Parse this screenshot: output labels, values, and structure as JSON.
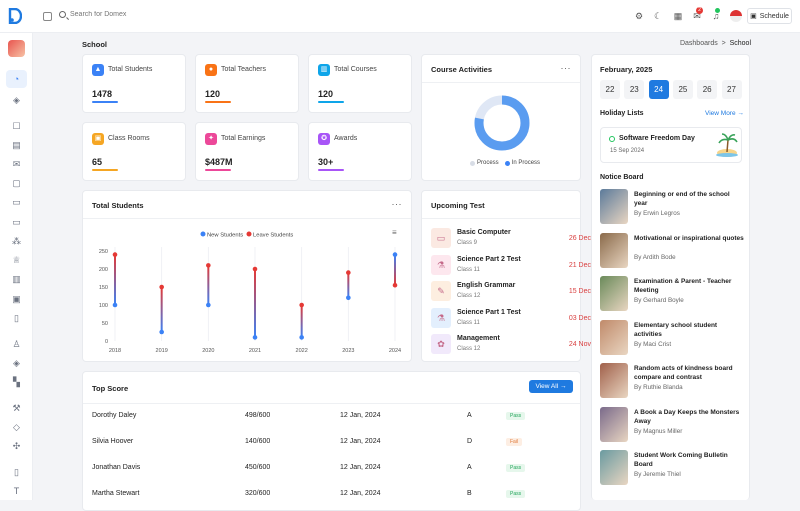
{
  "topbar": {
    "search_placeholder": "Search for Domex",
    "notification_count": "2",
    "schedule_label": "Schedule"
  },
  "page": {
    "title": "School",
    "breadcrumb": {
      "parent": "Dashboards",
      "separator": ">",
      "current": "School"
    }
  },
  "stats": [
    {
      "label": "Total Students",
      "value": "1478",
      "color": "#3b82f6",
      "icon": "graduation-cap-icon"
    },
    {
      "label": "Total Teachers",
      "value": "120",
      "color": "#f97316",
      "icon": "teacher-icon"
    },
    {
      "label": "Total Courses",
      "value": "120",
      "color": "#0ea5e9",
      "icon": "book-icon"
    },
    {
      "label": "Class Rooms",
      "value": "65",
      "color": "#f5a623",
      "icon": "classroom-icon"
    },
    {
      "label": "Total Earnings",
      "value": "$487M",
      "color": "#ec4899",
      "icon": "earnings-icon"
    },
    {
      "label": "Awards",
      "value": "30+",
      "color": "#a855f7",
      "icon": "award-icon"
    }
  ],
  "course_activities": {
    "title": "Course Activities",
    "legend": [
      "Process",
      "In Process"
    ],
    "process_pct": 22,
    "in_process_pct": 78,
    "colors": {
      "process": "#dfe7f5",
      "in_process": "#5a9cf0"
    }
  },
  "total_students": {
    "title": "Total Students"
  },
  "chart_data": {
    "type": "lollipop",
    "categories": [
      "2018",
      "2019",
      "2020",
      "2021",
      "2022",
      "2023",
      "2024"
    ],
    "series": [
      {
        "name": "New Students",
        "color": "#3b82f6",
        "values": [
          100,
          25,
          100,
          10,
          10,
          120,
          240
        ]
      },
      {
        "name": "Leave Students",
        "color": "#e53935",
        "values": [
          240,
          150,
          210,
          200,
          100,
          190,
          155
        ]
      }
    ],
    "ylim": [
      0,
      250
    ],
    "yticks": [
      0,
      50,
      100,
      150,
      200,
      250
    ],
    "legend": "top",
    "grid": "vertical"
  },
  "upcoming_test": {
    "title": "Upcoming Test",
    "items": [
      {
        "name": "Basic Computer",
        "class": "Class 9",
        "date": "26 Dec",
        "bg": "#fbe9e2",
        "icon": "computer-icon"
      },
      {
        "name": "Science Part 2 Test",
        "class": "Class 11",
        "date": "21 Dec",
        "bg": "#fde7ee",
        "icon": "science-icon"
      },
      {
        "name": "English Grammar",
        "class": "Class 12",
        "date": "15 Dec",
        "bg": "#fdeee0",
        "icon": "grammar-icon"
      },
      {
        "name": "Science Part 1 Test",
        "class": "Class 11",
        "date": "03 Dec",
        "bg": "#e3effd",
        "icon": "science-icon"
      },
      {
        "name": "Management",
        "class": "Class 12",
        "date": "24 Nov",
        "bg": "#f1e9fb",
        "icon": "management-icon"
      }
    ]
  },
  "top_score": {
    "title": "Top Score",
    "view_all": "View All",
    "rows": [
      {
        "name": "Dorothy Daley",
        "score": "498/600",
        "date": "12 Jan, 2024",
        "grade": "A",
        "status": "Pass"
      },
      {
        "name": "Silvia Hoover",
        "score": "140/600",
        "date": "12 Jan, 2024",
        "grade": "D",
        "status": "Fail"
      },
      {
        "name": "Jonathan Davis",
        "score": "450/600",
        "date": "12 Jan, 2024",
        "grade": "A",
        "status": "Pass"
      },
      {
        "name": "Martha Stewart",
        "score": "320/600",
        "date": "12 Jan, 2024",
        "grade": "B",
        "status": "Pass"
      }
    ]
  },
  "calendar": {
    "month": "February, 2025",
    "days": [
      "22",
      "23",
      "24",
      "25",
      "26",
      "27"
    ],
    "selected": "24"
  },
  "holidays": {
    "title": "Holiday Lists",
    "view_more": "View More",
    "items": [
      {
        "name": "Software Freedom Day",
        "date": "15 Sep 2024"
      }
    ]
  },
  "notice_board": {
    "title": "Notice Board",
    "items": [
      {
        "title": "Beginning or end of the school year",
        "author": "By Erwin Legros",
        "color": "#5b7a9a"
      },
      {
        "title": "Motivational or inspirational quotes",
        "author": "By Ardith Bode",
        "color": "#8a6a4a"
      },
      {
        "title": "Examination & Parent - Teacher Meeting",
        "author": "By Gerhard Boyle",
        "color": "#6a8a5a"
      },
      {
        "title": "Elementary school student activities",
        "author": "By Maci Crist",
        "color": "#c08a6a"
      },
      {
        "title": "Random acts of kindness board compare and contrast",
        "author": "By Ruthie Blanda",
        "color": "#a0604a"
      },
      {
        "title": "A Book a Day Keeps the Monsters Away",
        "author": "By Magnus Miller",
        "color": "#7a6a8a"
      },
      {
        "title": "Student Work Coming Bulletin Board",
        "author": "By Jeremie Thiel",
        "color": "#6a9aa0"
      }
    ]
  }
}
